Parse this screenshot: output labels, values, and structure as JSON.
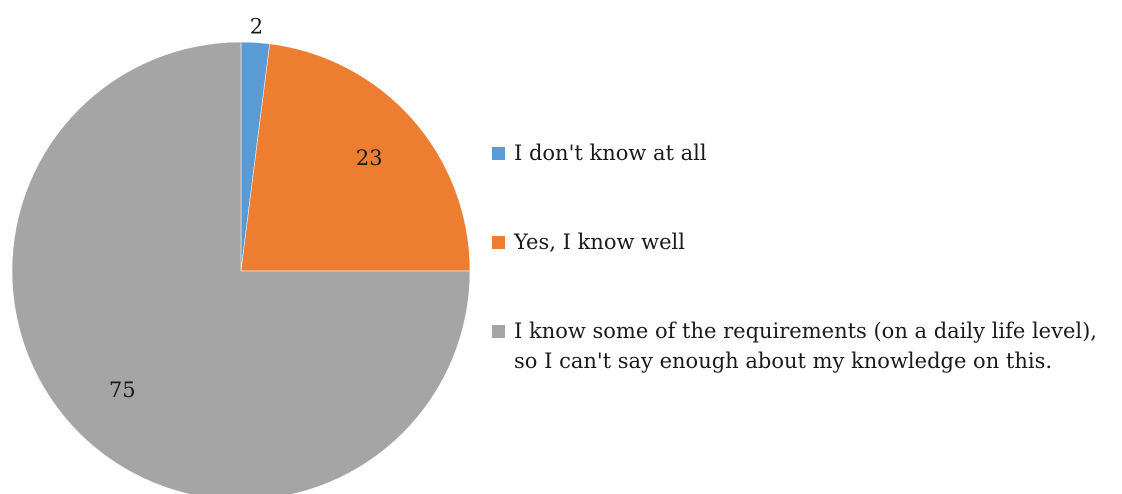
{
  "chart_data": {
    "type": "pie",
    "title": "",
    "slices": [
      {
        "label": "I don't know at all",
        "value": 2,
        "color": "#5B9BD5"
      },
      {
        "label": "Yes, I know well",
        "value": 23,
        "color": "#ED7D31"
      },
      {
        "label": "I know some of the requirements (on a daily life level), so I can't say enough about my knowledge on this.",
        "value": 75,
        "color": "#A5A5A5"
      }
    ],
    "start_angle": "12 o'clock",
    "direction": "clockwise",
    "legend_position": "right",
    "show_data_labels": true
  }
}
